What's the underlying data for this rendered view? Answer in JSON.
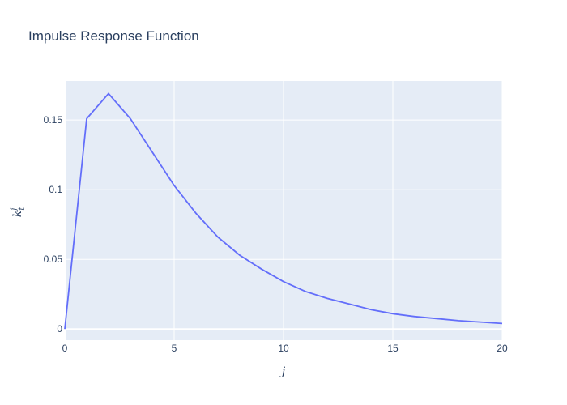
{
  "chart_data": {
    "type": "line",
    "title": "Impulse Response Function",
    "xlabel": "j",
    "ylabel_base": "k",
    "ylabel_sub": "t",
    "ylabel_sup": "j",
    "xlim": [
      0,
      20
    ],
    "ylim": [
      -0.008,
      0.178
    ],
    "x_ticks": [
      0,
      5,
      10,
      15,
      20
    ],
    "y_ticks": [
      0,
      0.05,
      0.1,
      0.15
    ],
    "y_tick_labels": [
      "0",
      "0.05",
      "0.1",
      "0.15"
    ],
    "grid": true,
    "colors": {
      "plot_bg": "#e5ecf6",
      "grid": "#ffffff",
      "line": "#636efa",
      "text": "#2a3f5f"
    },
    "series": [
      {
        "x": [
          0,
          1,
          2,
          3,
          4,
          5,
          6,
          7,
          8,
          9,
          10,
          11,
          12,
          13,
          14,
          15,
          16,
          17,
          18,
          19,
          20
        ],
        "y": [
          0,
          0.151,
          0.169,
          0.151,
          0.127,
          0.103,
          0.083,
          0.066,
          0.053,
          0.043,
          0.034,
          0.027,
          0.022,
          0.018,
          0.014,
          0.011,
          0.009,
          0.0075,
          0.006,
          0.005,
          0.004
        ]
      }
    ]
  }
}
